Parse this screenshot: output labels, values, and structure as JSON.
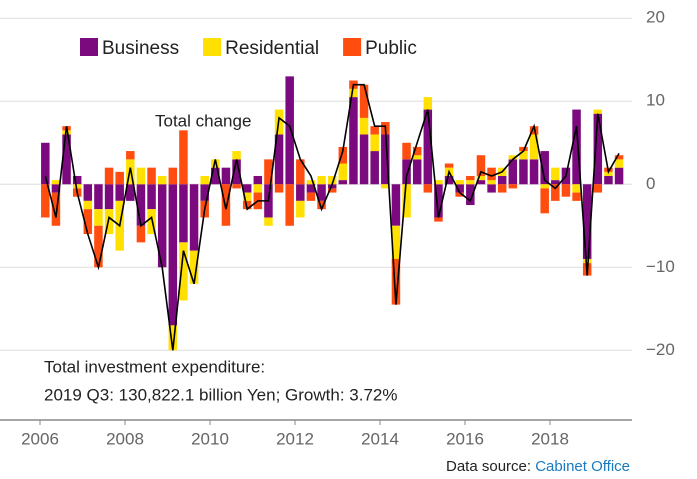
{
  "chart_data": {
    "type": "bar",
    "legend": "top-left",
    "annotations": [
      "Total change"
    ],
    "note_lines": [
      "Total investment expenditure:",
      "2019 Q3: 130,822.1 billion Yen; Growth: 3.72%"
    ],
    "source_prefix": "Data source:",
    "source_link": "Cabinet Office",
    "x": [
      2006.0,
      2006.25,
      2006.5,
      2006.75,
      2007.0,
      2007.25,
      2007.5,
      2007.75,
      2008.0,
      2008.25,
      2008.5,
      2008.75,
      2009.0,
      2009.25,
      2009.5,
      2009.75,
      2010.0,
      2010.25,
      2010.5,
      2010.75,
      2011.0,
      2011.25,
      2011.5,
      2011.75,
      2012.0,
      2012.25,
      2012.5,
      2012.75,
      2013.0,
      2013.25,
      2013.5,
      2013.75,
      2014.0,
      2014.25,
      2014.5,
      2014.75,
      2015.0,
      2015.25,
      2015.5,
      2015.75,
      2016.0,
      2016.25,
      2016.5,
      2016.75,
      2017.0,
      2017.25,
      2017.5,
      2017.75,
      2018.0,
      2018.25,
      2018.5,
      2018.75,
      2019.0,
      2019.25,
      2019.5
    ],
    "series": [
      {
        "name": "Business",
        "color": "#7b0a7e",
        "values": [
          5,
          -1,
          6,
          1,
          -2,
          -3,
          -3,
          -2,
          -2,
          -5,
          -3,
          -10,
          -17,
          -7,
          -8,
          -2,
          2,
          2,
          3,
          -1,
          1,
          -4,
          6,
          13,
          -2,
          -1,
          -2,
          -0.5,
          0.5,
          10.5,
          6,
          4,
          6,
          -5,
          3,
          3,
          9,
          -4,
          1,
          -1,
          -2.5,
          0.5,
          -1,
          1,
          3,
          3,
          3,
          4,
          0.5,
          2,
          9,
          -9,
          8.5,
          1,
          2
        ]
      },
      {
        "name": "Residential",
        "color": "#ffe000",
        "values": [
          0,
          0.5,
          0.5,
          -0.5,
          -1,
          -2,
          -3,
          -6,
          3,
          2,
          -3,
          1,
          -3,
          -7,
          -4,
          1,
          1,
          0,
          1,
          -1,
          -1,
          -1,
          3,
          0,
          -2,
          0.5,
          1,
          1,
          2,
          1,
          2,
          2,
          -0.5,
          -4,
          -4,
          0.5,
          1.5,
          0.5,
          1,
          0.5,
          0.5,
          0.5,
          0.5,
          1,
          0.5,
          1,
          3,
          -0.5,
          1.5,
          0,
          -1,
          -0.5,
          0.5,
          0.5,
          1
        ]
      },
      {
        "name": "Public",
        "color": "#ff4d10",
        "values": [
          -4,
          -4,
          0.5,
          -1,
          -3,
          -5,
          2,
          1.5,
          1,
          -2,
          2,
          0,
          2,
          6.5,
          0,
          -2,
          0,
          -5,
          -0.5,
          -1,
          -2,
          3,
          -1,
          -5,
          3,
          -1,
          -1,
          -0.5,
          2,
          1,
          4,
          1,
          1.5,
          -5.5,
          2,
          1,
          -1,
          -0.5,
          0.5,
          -0.5,
          0.5,
          2.5,
          1.5,
          -1,
          -0.5,
          0.5,
          1,
          -3,
          -2,
          -1.5,
          -1,
          -1.5,
          -1,
          0.5,
          0.5
        ]
      },
      {
        "name": "Total change",
        "color": "#000000",
        "line": true,
        "values": [
          1,
          -4,
          7,
          -1,
          -6,
          -10,
          -4,
          -5,
          2,
          -5,
          -4,
          -10,
          -20,
          -8,
          -12,
          -3,
          3,
          -3,
          3,
          -3,
          -2,
          -2,
          8,
          7,
          3,
          1,
          -3,
          0,
          4,
          12,
          12,
          7,
          7,
          -14.5,
          1,
          5,
          9,
          -4,
          1.5,
          -1,
          -2,
          1.5,
          1,
          1.5,
          3,
          4,
          7,
          0.5,
          -0.5,
          1,
          7,
          -11,
          8.5,
          1.5,
          3.72
        ]
      }
    ],
    "xlim": [
      2005,
      2020
    ],
    "xticks": [
      2006,
      2008,
      2010,
      2012,
      2014,
      2016,
      2018
    ],
    "ylim": [
      -28.4,
      22.2
    ],
    "yticks": [
      {
        "value": -20,
        "label": "−20"
      },
      {
        "value": -10,
        "label": "−10"
      },
      0,
      10,
      20
    ],
    "grid": true
  }
}
